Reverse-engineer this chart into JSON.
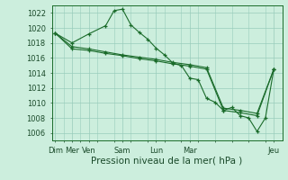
{
  "bg_color": "#cceedd",
  "grid_color": "#99ccbb",
  "line_color": "#1a6b2a",
  "xlabel": "Pression niveau de la mer( hPa )",
  "xlabel_fontsize": 7.5,
  "ylim": [
    1005,
    1023
  ],
  "yticks": [
    1006,
    1008,
    1010,
    1012,
    1014,
    1016,
    1018,
    1020,
    1022
  ],
  "series1_x": [
    0,
    1,
    2,
    3,
    3.5,
    4,
    4.5,
    5,
    5.5,
    6,
    6.5,
    7,
    7.5,
    8,
    8.5,
    9,
    9.5,
    10,
    10.5,
    11,
    11.5,
    12,
    12.5,
    13
  ],
  "series1_y": [
    1019.3,
    1018.0,
    1019.2,
    1020.3,
    1022.3,
    1022.5,
    1020.4,
    1019.4,
    1018.5,
    1017.3,
    1016.4,
    1015.3,
    1015.0,
    1013.3,
    1013.1,
    1010.6,
    1010.1,
    1009.0,
    1009.4,
    1008.3,
    1008.0,
    1006.2,
    1008.0,
    1014.5
  ],
  "series2_x": [
    0,
    1,
    2,
    3,
    4,
    5,
    6,
    7,
    8,
    9,
    10,
    11,
    12,
    13
  ],
  "series2_y": [
    1019.3,
    1017.5,
    1017.2,
    1016.8,
    1016.4,
    1016.1,
    1015.8,
    1015.4,
    1015.1,
    1014.7,
    1009.3,
    1009.0,
    1008.6,
    1014.5
  ],
  "series3_x": [
    0,
    1,
    2,
    3,
    4,
    5,
    6,
    7,
    8,
    9,
    10,
    11,
    12,
    13
  ],
  "series3_y": [
    1019.3,
    1017.2,
    1017.0,
    1016.6,
    1016.3,
    1015.9,
    1015.6,
    1015.2,
    1014.9,
    1014.5,
    1009.0,
    1008.7,
    1008.3,
    1014.5
  ],
  "major_xtick_pos": [
    0,
    1,
    2,
    4,
    6,
    8,
    13
  ],
  "major_xtick_labels": [
    "Dim",
    "Mer",
    "Ven",
    "Sam",
    "Lun",
    "Mar",
    "Jeu"
  ]
}
